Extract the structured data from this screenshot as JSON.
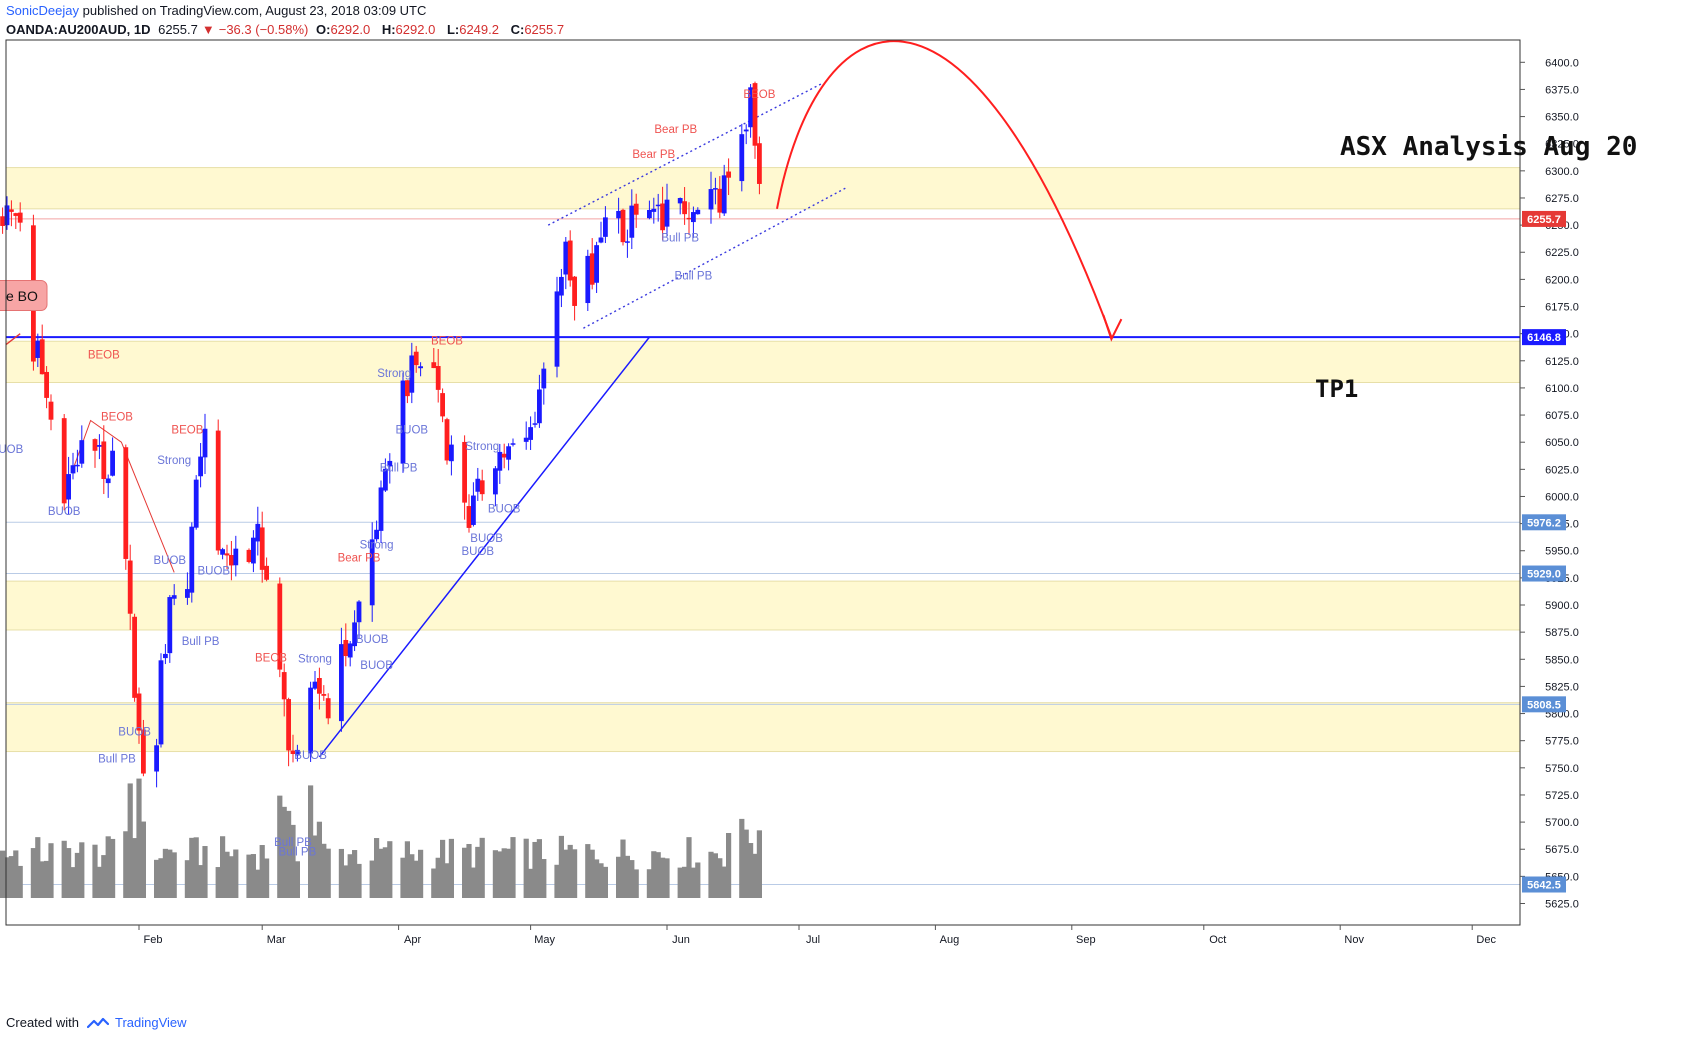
{
  "header": {
    "user": "SonicDeejay",
    "published": "published on TradingView.com, August 23, 2018 03:09 UTC",
    "symbol": "OANDA:AU200AUD, 1D",
    "last": "6255.7",
    "arrow": "▼",
    "change": "−36.3 (−0.58%)",
    "o_label": "O:",
    "o_value": "6292.0",
    "h_label": "H:",
    "h_value": "6292.0",
    "l_label": "L:",
    "l_value": "6249.2",
    "c_label": "C:",
    "c_value": "6255.7"
  },
  "footer": {
    "created_with": "Created with",
    "brand": "TradingView"
  },
  "chart_data": {
    "type": "candlestick",
    "title": "ASX Analysis Aug 20",
    "ylim": [
      5600,
      6420
    ],
    "y_ticks": [
      6400,
      6375,
      6350,
      6325,
      6300,
      6275,
      6250,
      6225,
      6200,
      6175,
      6150,
      6125,
      6100,
      6075,
      6050,
      6025,
      6000,
      5975,
      5950,
      5925,
      5900,
      5875,
      5850,
      5825,
      5800,
      5775,
      5750,
      5725,
      5700,
      5675,
      5650,
      5625
    ],
    "y_tick_labels": [
      "6400.0",
      "6375.0",
      "6350.0",
      "6325.0",
      "6300.0",
      "6275.0",
      "6250.0",
      "6225.0",
      "6200.0",
      "6175.0",
      "6150.0",
      "6125.0",
      "6100.0",
      "6075.0",
      "6050.0",
      "6025.0",
      "6000.0",
      "5975.0",
      "5950.0",
      "5925.0",
      "5900.0",
      "5875.0",
      "5850.0",
      "5825.0",
      "5800.0",
      "5775.0",
      "5750.0",
      "5725.0",
      "5700.0",
      "5675.0",
      "5650.0",
      "5625.0"
    ],
    "x_ticks": [
      {
        "label": "Feb",
        "day": 31
      },
      {
        "label": "Mar",
        "day": 59
      },
      {
        "label": "Apr",
        "day": 90
      },
      {
        "label": "May",
        "day": 120
      },
      {
        "label": "Jun",
        "day": 151
      },
      {
        "label": "Jul",
        "day": 181
      },
      {
        "label": "Aug",
        "day": 212
      },
      {
        "label": "Sep",
        "day": 243
      },
      {
        "label": "Oct",
        "day": 273
      },
      {
        "label": "Nov",
        "day": 304
      },
      {
        "label": "Dec",
        "day": 334
      }
    ],
    "price_tags": [
      {
        "value": 6255.7,
        "label": "6255.7",
        "color": "#e53935"
      },
      {
        "value": 6146.8,
        "label": "6146.8",
        "color": "#1a1aff"
      },
      {
        "value": 5976.2,
        "label": "5976.2",
        "color": "#5b8fd6"
      },
      {
        "value": 5929.0,
        "label": "5929.0",
        "color": "#5b8fd6"
      },
      {
        "value": 5808.5,
        "label": "5808.5",
        "color": "#5b8fd6"
      },
      {
        "value": 5642.5,
        "label": "5642.5",
        "color": "#5b8fd6"
      }
    ],
    "zones": [
      {
        "from": 6265,
        "to": 6303
      },
      {
        "from": 6105,
        "to": 6143
      },
      {
        "from": 5877,
        "to": 5922
      },
      {
        "from": 5765,
        "to": 5810
      }
    ],
    "key_level": 6146.8,
    "close_price": 6255.7,
    "target_label": "TP1",
    "target_value": 6146.8,
    "breakout_label": "e BO",
    "annotations": [
      {
        "text": "BEOB",
        "day": 23,
        "value": 6127,
        "color": "#ef5350"
      },
      {
        "text": "BEOB",
        "day": 26,
        "value": 6070,
        "color": "#ef5350"
      },
      {
        "text": "BUOB",
        "day": 1,
        "value": 6040,
        "color": "#6a75d8"
      },
      {
        "text": "BUOB",
        "day": 14,
        "value": 5983,
        "color": "#6a75d8"
      },
      {
        "text": "Strong",
        "day": 39,
        "value": 6030,
        "color": "#6a75d8"
      },
      {
        "text": "BEOB",
        "day": 42,
        "value": 6058,
        "color": "#ef5350"
      },
      {
        "text": "BUOB",
        "day": 38,
        "value": 5938,
        "color": "#6a75d8"
      },
      {
        "text": "BUOB",
        "day": 48,
        "value": 5928,
        "color": "#6a75d8"
      },
      {
        "text": "Bull PB",
        "day": 45,
        "value": 5863,
        "color": "#6a75d8"
      },
      {
        "text": "BUOB",
        "day": 30,
        "value": 5780,
        "color": "#6a75d8"
      },
      {
        "text": "Bull PB",
        "day": 26,
        "value": 5755,
        "color": "#6a75d8"
      },
      {
        "text": "BEOB",
        "day": 61,
        "value": 5848,
        "color": "#ef5350"
      },
      {
        "text": "Strong",
        "day": 71,
        "value": 5847,
        "color": "#6a75d8"
      },
      {
        "text": "BUOB",
        "day": 70,
        "value": 5758,
        "color": "#6a75d8"
      },
      {
        "text": "Bull PB",
        "day": 66,
        "value": 5678,
        "color": "#6a75d8"
      },
      {
        "text": "Bull PB",
        "day": 67,
        "value": 5669,
        "color": "#6a75d8"
      },
      {
        "text": "BUOB",
        "day": 85,
        "value": 5841,
        "color": "#6a75d8"
      },
      {
        "text": "BUOB",
        "day": 84,
        "value": 5865,
        "color": "#6a75d8"
      },
      {
        "text": "Bear PB",
        "day": 81,
        "value": 5940,
        "color": "#ef5350"
      },
      {
        "text": "Strong",
        "day": 85,
        "value": 5952,
        "color": "#6a75d8"
      },
      {
        "text": "Bull PB",
        "day": 90,
        "value": 6023,
        "color": "#6a75d8"
      },
      {
        "text": "BUOB",
        "day": 93,
        "value": 6058,
        "color": "#6a75d8"
      },
      {
        "text": "Strong",
        "day": 89,
        "value": 6110,
        "color": "#6a75d8"
      },
      {
        "text": "BEOB",
        "day": 101,
        "value": 6140,
        "color": "#ef5350"
      },
      {
        "text": "Strong",
        "day": 109,
        "value": 6043,
        "color": "#6a75d8"
      },
      {
        "text": "BUOB",
        "day": 114,
        "value": 5985,
        "color": "#6a75d8"
      },
      {
        "text": "BUOB",
        "day": 110,
        "value": 5958,
        "color": "#6a75d8"
      },
      {
        "text": "BUOB",
        "day": 108,
        "value": 5946,
        "color": "#6a75d8"
      },
      {
        "text": "Bear PB",
        "day": 148,
        "value": 6312,
        "color": "#ef5350"
      },
      {
        "text": "Bear PB",
        "day": 153,
        "value": 6335,
        "color": "#ef5350"
      },
      {
        "text": "Bull PB",
        "day": 154,
        "value": 6235,
        "color": "#6a75d8"
      },
      {
        "text": "Bull PB",
        "day": 157,
        "value": 6200,
        "color": "#6a75d8"
      },
      {
        "text": "BEOB",
        "day": 172,
        "value": 6367,
        "color": "#ef5350"
      }
    ]
  }
}
